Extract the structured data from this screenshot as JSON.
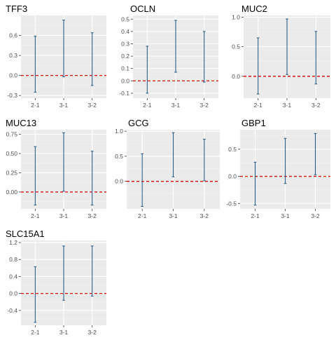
{
  "colors": {
    "panel_background": "#ebebeb",
    "grid_major": "#ffffff",
    "grid_minor": "#f4f4f4",
    "errorbar": "#2c5d8a",
    "reference_line": "#e00000",
    "tick_label": "#4d4d4d",
    "title": "#000000"
  },
  "chart_data": [
    {
      "type": "errorbar",
      "title": "TFF3",
      "categories": [
        "2-1",
        "3-1",
        "3-2"
      ],
      "intervals": [
        {
          "category": "2-1",
          "low": -0.25,
          "high": 0.59
        },
        {
          "category": "3-1",
          "low": -0.02,
          "high": 0.83
        },
        {
          "category": "3-2",
          "low": -0.15,
          "high": 0.64
        }
      ],
      "reference_line": 0,
      "ylim": [
        -0.34,
        0.9
      ],
      "yticks": [
        -0.3,
        0.0,
        0.3,
        0.6
      ],
      "ytick_labels": [
        "-0.3",
        "0.0",
        "0.3",
        "0.6"
      ],
      "grid": true,
      "legend": "none"
    },
    {
      "type": "errorbar",
      "title": "OCLN",
      "categories": [
        "2-1",
        "3-1",
        "3-2"
      ],
      "intervals": [
        {
          "category": "2-1",
          "low": -0.1,
          "high": 0.28
        },
        {
          "category": "3-1",
          "low": 0.07,
          "high": 0.49
        },
        {
          "category": "3-2",
          "low": -0.01,
          "high": 0.4
        }
      ],
      "reference_line": 0,
      "ylim": [
        -0.14,
        0.53
      ],
      "yticks": [
        -0.1,
        0.0,
        0.1,
        0.2,
        0.3,
        0.4,
        0.5
      ],
      "ytick_labels": [
        "-0.1",
        "0.0",
        "0.1",
        "0.2",
        "0.3",
        "0.4",
        "0.5"
      ],
      "grid": true,
      "legend": "none"
    },
    {
      "type": "errorbar",
      "title": "MUC2",
      "categories": [
        "2-1",
        "3-1",
        "3-2"
      ],
      "intervals": [
        {
          "category": "2-1",
          "low": -0.3,
          "high": 0.65
        },
        {
          "category": "3-1",
          "low": 0.03,
          "high": 0.97
        },
        {
          "category": "3-2",
          "low": -0.13,
          "high": 0.76
        }
      ],
      "reference_line": 0,
      "ylim": [
        -0.37,
        1.03
      ],
      "yticks": [
        0.0,
        0.5,
        1.0
      ],
      "ytick_labels": [
        "0.0",
        "0.5",
        "1.0"
      ],
      "grid": true,
      "legend": "none"
    },
    {
      "type": "errorbar",
      "title": "MUC13",
      "categories": [
        "2-1",
        "3-1",
        "3-2"
      ],
      "intervals": [
        {
          "category": "2-1",
          "low": -0.17,
          "high": 0.59
        },
        {
          "category": "3-1",
          "low": 0.01,
          "high": 0.77
        },
        {
          "category": "3-2",
          "low": -0.17,
          "high": 0.53
        }
      ],
      "reference_line": 0,
      "ylim": [
        -0.22,
        0.81
      ],
      "yticks": [
        0.0,
        0.25,
        0.5,
        0.75
      ],
      "ytick_labels": [
        "0.00",
        "0.25",
        "0.50",
        "0.75"
      ],
      "grid": true,
      "legend": "none"
    },
    {
      "type": "errorbar",
      "title": "GCG",
      "categories": [
        "2-1",
        "3-1",
        "3-2"
      ],
      "intervals": [
        {
          "category": "2-1",
          "low": -0.5,
          "high": 0.55
        },
        {
          "category": "3-1",
          "low": 0.09,
          "high": 0.97
        },
        {
          "category": "3-2",
          "low": 0.01,
          "high": 0.84
        }
      ],
      "reference_line": 0,
      "ylim": [
        -0.55,
        1.03
      ],
      "yticks": [
        0.0,
        0.5,
        1.0
      ],
      "ytick_labels": [
        "0.0",
        "0.5",
        "1.0"
      ],
      "grid": true,
      "legend": "none"
    },
    {
      "type": "errorbar",
      "title": "GBP1",
      "categories": [
        "2-1",
        "3-1",
        "3-2"
      ],
      "intervals": [
        {
          "category": "2-1",
          "low": -0.53,
          "high": 0.26
        },
        {
          "category": "3-1",
          "low": -0.13,
          "high": 0.7
        },
        {
          "category": "3-2",
          "low": 0.03,
          "high": 0.79
        }
      ],
      "reference_line": 0,
      "ylim": [
        -0.6,
        0.86
      ],
      "yticks": [
        -0.5,
        0.0,
        0.5
      ],
      "ytick_labels": [
        "-0.5",
        "0.0",
        "0.5"
      ],
      "grid": true,
      "legend": "none"
    },
    {
      "type": "errorbar",
      "title": "SLC15A1",
      "categories": [
        "2-1",
        "3-1",
        "3-2"
      ],
      "intervals": [
        {
          "category": "2-1",
          "low": -0.68,
          "high": 0.63
        },
        {
          "category": "3-1",
          "low": -0.16,
          "high": 1.12
        },
        {
          "category": "3-2",
          "low": -0.06,
          "high": 1.12
        }
      ],
      "reference_line": 0,
      "ylim": [
        -0.75,
        1.25
      ],
      "yticks": [
        -0.4,
        0.0,
        0.4,
        0.8,
        1.2
      ],
      "ytick_labels": [
        "-0.4",
        "0.0",
        "0.4",
        "0.8",
        "1.2"
      ],
      "grid": true,
      "legend": "none"
    }
  ]
}
